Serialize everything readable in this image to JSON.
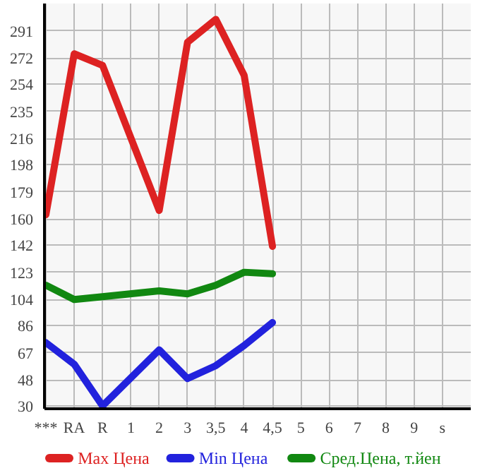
{
  "chart_data": {
    "type": "line",
    "categories": [
      "***",
      "RA",
      "R",
      "1",
      "2",
      "3",
      "3,5",
      "4",
      "4,5",
      "5",
      "6",
      "7",
      "8",
      "9",
      "s"
    ],
    "series": [
      {
        "name": "Max Цена",
        "color": "#dd2222",
        "values": [
          163,
          275,
          267,
          null,
          166,
          283,
          299,
          260,
          141,
          null,
          null,
          null,
          null,
          null,
          null
        ]
      },
      {
        "name": "Min Цена",
        "color": "#2222dd",
        "values": [
          74,
          59,
          30,
          null,
          69,
          49,
          58,
          72,
          88,
          null,
          null,
          null,
          null,
          null,
          null
        ]
      },
      {
        "name": "Сред.Цена, т.йен",
        "color": "#118811",
        "values": [
          114,
          104,
          106,
          null,
          110,
          108,
          114,
          123,
          122,
          null,
          null,
          null,
          null,
          null,
          null
        ]
      }
    ],
    "ylim": [
      28,
      310
    ],
    "yticks": [
      30,
      48,
      67,
      86,
      104,
      123,
      142,
      160,
      179,
      198,
      216,
      235,
      254,
      272,
      291
    ],
    "grid": true,
    "legend": "bottom",
    "marker": "none",
    "line_style": "solid"
  }
}
